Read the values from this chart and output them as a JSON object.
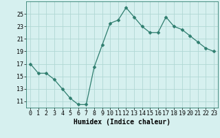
{
  "x": [
    0,
    1,
    2,
    3,
    4,
    5,
    6,
    7,
    8,
    9,
    10,
    11,
    12,
    13,
    14,
    15,
    16,
    17,
    18,
    19,
    20,
    21,
    22,
    23
  ],
  "y": [
    17,
    15.5,
    15.5,
    14.5,
    13,
    11.5,
    10.5,
    10.5,
    16.5,
    20,
    23.5,
    24,
    26,
    24.5,
    23,
    22,
    22,
    24.5,
    23,
    22.5,
    21.5,
    20.5,
    19.5,
    19
  ],
  "line_color": "#2e7d6e",
  "marker": "D",
  "marker_size": 2.5,
  "bg_color": "#d6f0ef",
  "grid_color": "#b0d8d4",
  "xlabel": "Humidex (Indice chaleur)",
  "ylim": [
    10,
    27
  ],
  "xlim": [
    -0.5,
    23.5
  ],
  "yticks": [
    11,
    13,
    15,
    17,
    19,
    21,
    23,
    25
  ],
  "xticks": [
    0,
    1,
    2,
    3,
    4,
    5,
    6,
    7,
    8,
    9,
    10,
    11,
    12,
    13,
    14,
    15,
    16,
    17,
    18,
    19,
    20,
    21,
    22,
    23
  ],
  "xlabel_fontsize": 7,
  "tick_fontsize": 6
}
